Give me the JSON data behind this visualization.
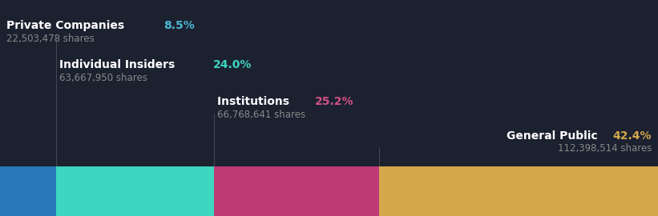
{
  "background_color": "#1c2130",
  "segments": [
    {
      "label": "Private Companies",
      "pct": "8.5%",
      "shares": "22,503,478 shares",
      "value": 8.5,
      "bar_color": "#2979b8",
      "pct_color": "#4db8d4",
      "label_anchor": "left",
      "label_row": 0
    },
    {
      "label": "Individual Insiders",
      "pct": "24.0%",
      "shares": "63,667,950 shares",
      "value": 24.0,
      "bar_color": "#3dd6c0",
      "pct_color": "#3dd6c0",
      "label_anchor": "left",
      "label_row": 1
    },
    {
      "label": "Institutions",
      "pct": "25.2%",
      "shares": "66,768,641 shares",
      "value": 25.2,
      "bar_color": "#be3a75",
      "pct_color": "#d4508a",
      "label_anchor": "left",
      "label_row": 2
    },
    {
      "label": "General Public",
      "pct": "42.4%",
      "shares": "112,398,514 shares",
      "value": 42.4,
      "bar_color": "#d4a84b",
      "pct_color": "#d4a84b",
      "label_anchor": "right",
      "label_row": 3
    }
  ],
  "text_color_label": "#ffffff",
  "text_color_shares": "#888888",
  "label_fontsize": 10,
  "pct_fontsize": 10,
  "shares_fontsize": 8.5,
  "line_color": "#444455"
}
